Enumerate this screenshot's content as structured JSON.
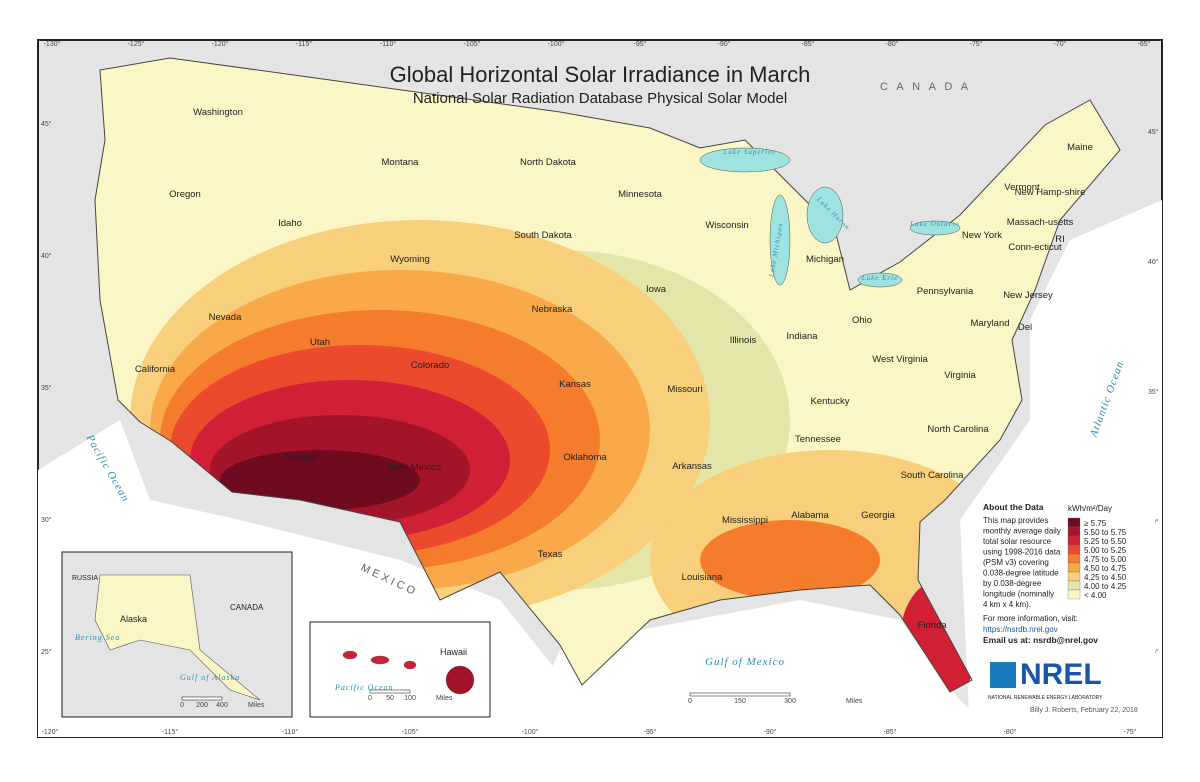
{
  "header": {
    "title": "Global Horizontal Solar Irradiance in March",
    "subtitle": "National Solar Radiation Database Physical Solar Model"
  },
  "states": [
    "Washington",
    "Oregon",
    "California",
    "Nevada",
    "Idaho",
    "Montana",
    "Wyoming",
    "Utah",
    "Arizona",
    "Colorado",
    "New Mexico",
    "North Dakota",
    "South Dakota",
    "Nebraska",
    "Kansas",
    "Oklahoma",
    "Texas",
    "Minnesota",
    "Iowa",
    "Missouri",
    "Arkansas",
    "Louisiana",
    "Wisconsin",
    "Illinois",
    "Michigan",
    "Indiana",
    "Ohio",
    "Kentucky",
    "Tennessee",
    "Mississippi",
    "Alabama",
    "Georgia",
    "Florida",
    "South Carolina",
    "North Carolina",
    "Virginia",
    "West Virginia",
    "Pennsylvania",
    "New York",
    "Maine",
    "Vermont",
    "New Hamp-shire",
    "Massach-usetts",
    "Conn-ecticut",
    "RI",
    "New Jersey",
    "Maryland",
    "Del"
  ],
  "water": [
    "Pacific Ocean",
    "Atlantic Ocean",
    "Gulf of Mexico",
    "Lake Superior",
    "Lake Michigan",
    "Lake Huron",
    "Lake Ontario",
    "Lake Erie"
  ],
  "countries": [
    "C A N A D A",
    "M E X I C O"
  ],
  "lon_top": [
    "-130°",
    "-125°",
    "-120°",
    "-115°",
    "-110°",
    "-105°",
    "-100°",
    "-95°",
    "-90°",
    "-85°",
    "-80°",
    "-75°",
    "-70°",
    "-65°"
  ],
  "lon_bottom": [
    "-120°",
    "-115°",
    "-110°",
    "-105°",
    "-100°",
    "-95°",
    "-90°",
    "-85°",
    "-80°",
    "-75°"
  ],
  "lat_left": [
    "45°",
    "40°",
    "35°",
    "30°",
    "25°"
  ],
  "alaska": {
    "label": "Alaska",
    "country1": "RUSSIA",
    "country2": "CANADA",
    "sea": "Bering Sea",
    "gulf": "Gulf of Alaska",
    "scale": [
      "0",
      "200",
      "400",
      "Miles"
    ]
  },
  "hawaii": {
    "label": "Hawaii",
    "ocean": "Pacific Ocean",
    "scale": [
      "0",
      "50",
      "100",
      "Miles"
    ]
  },
  "scale": [
    "0",
    "150",
    "300",
    "Miles"
  ],
  "about": {
    "heading": "About the Data",
    "lines": [
      "This map provides",
      "monthly average daily",
      "total solar resource",
      "using 1998-2016 data",
      "(PSM v3) covering",
      "0.038-degree latitude",
      "by 0.038-degree",
      "longitude (nominally",
      "4 km x 4 km)."
    ],
    "more": "For more information, visit:",
    "url": "https://nsrdb.nrel.gov",
    "email": "Email us at: nsrdb@nrel.gov"
  },
  "legend": {
    "unit": "kWh/m²/Day",
    "items": [
      {
        "label": "≥ 5.75",
        "color": "#6e0b1f"
      },
      {
        "label": "5.50 to 5.75",
        "color": "#a3142b"
      },
      {
        "label": "5.25 to 5.50",
        "color": "#d11f35"
      },
      {
        "label": "5.00 to 5.25",
        "color": "#ec4a2c"
      },
      {
        "label": "4.75 to 5.00",
        "color": "#f47c2c"
      },
      {
        "label": "4.50 to 4.75",
        "color": "#f9a84a"
      },
      {
        "label": "4.25 to 4.50",
        "color": "#f8cf7a"
      },
      {
        "label": "4.00 to 4.25",
        "color": "#e3e6a8"
      },
      {
        "label": "< 4.00",
        "color": "#fbf6c6"
      }
    ]
  },
  "logo": {
    "name": "NREL",
    "full": "NATIONAL RENEWABLE ENERGY LABORATORY"
  },
  "credit": "Billy J. Roberts, February 22, 2018"
}
